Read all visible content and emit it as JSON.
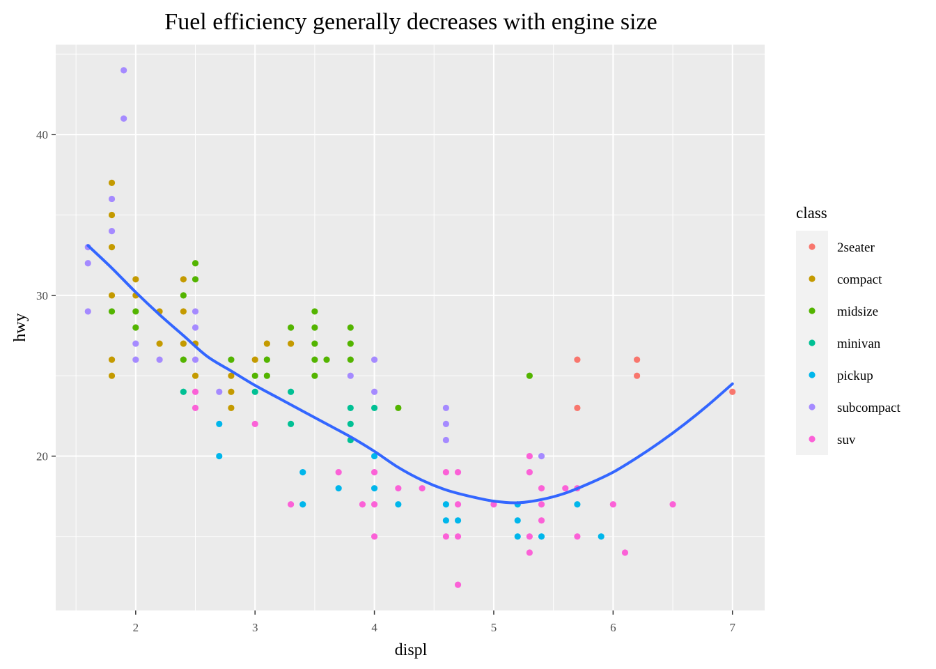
{
  "chart_data": {
    "type": "scatter",
    "title": "Fuel efficiency generally decreases with engine size",
    "xlabel": "displ",
    "ylabel": "hwy",
    "xlim": [
      1.33,
      7.27
    ],
    "ylim": [
      10.4,
      45.6
    ],
    "x_ticks": [
      2,
      3,
      4,
      5,
      6,
      7
    ],
    "y_ticks": [
      20,
      30,
      40
    ],
    "grid": true,
    "background": "#ebebeb",
    "legend": {
      "title": "class",
      "position": "right",
      "entries": [
        "2seater",
        "compact",
        "midsize",
        "minivan",
        "pickup",
        "subcompact",
        "suv"
      ]
    },
    "colors": {
      "2seater": "#f8766d",
      "compact": "#c49a00",
      "midsize": "#53b400",
      "minivan": "#00c094",
      "pickup": "#00b6eb",
      "subcompact": "#a58aff",
      "suv": "#fb61d7",
      "smooth": "#3366ff"
    },
    "series": [
      {
        "name": "2seater",
        "points": [
          [
            5.7,
            26
          ],
          [
            5.7,
            23
          ],
          [
            6.2,
            26
          ],
          [
            6.2,
            25
          ],
          [
            7.0,
            24
          ]
        ]
      },
      {
        "name": "compact",
        "points": [
          [
            1.8,
            37
          ],
          [
            1.8,
            35
          ],
          [
            1.8,
            33
          ],
          [
            1.8,
            30
          ],
          [
            1.8,
            26
          ],
          [
            1.8,
            25
          ],
          [
            2.0,
            31
          ],
          [
            2.0,
            30
          ],
          [
            2.2,
            29
          ],
          [
            2.2,
            27
          ],
          [
            2.4,
            31
          ],
          [
            2.4,
            29
          ],
          [
            2.4,
            27
          ],
          [
            2.5,
            27
          ],
          [
            2.5,
            25
          ],
          [
            2.8,
            25
          ],
          [
            2.8,
            24
          ],
          [
            2.8,
            23
          ],
          [
            3.0,
            26
          ],
          [
            3.1,
            27
          ],
          [
            3.3,
            27
          ]
        ]
      },
      {
        "name": "midsize",
        "points": [
          [
            1.8,
            29
          ],
          [
            2.0,
            29
          ],
          [
            2.0,
            28
          ],
          [
            2.4,
            30
          ],
          [
            2.4,
            26
          ],
          [
            2.5,
            32
          ],
          [
            2.5,
            31
          ],
          [
            2.8,
            26
          ],
          [
            3.0,
            25
          ],
          [
            3.1,
            26
          ],
          [
            3.1,
            25
          ],
          [
            3.3,
            28
          ],
          [
            3.5,
            29
          ],
          [
            3.5,
            28
          ],
          [
            3.5,
            27
          ],
          [
            3.5,
            26
          ],
          [
            3.5,
            25
          ],
          [
            3.6,
            26
          ],
          [
            3.8,
            28
          ],
          [
            3.8,
            27
          ],
          [
            3.8,
            26
          ],
          [
            4.2,
            23
          ],
          [
            5.3,
            25
          ]
        ]
      },
      {
        "name": "minivan",
        "points": [
          [
            2.4,
            24
          ],
          [
            3.0,
            24
          ],
          [
            3.3,
            24
          ],
          [
            3.3,
            22
          ],
          [
            3.8,
            23
          ],
          [
            3.8,
            22
          ],
          [
            3.8,
            21
          ],
          [
            4.0,
            23
          ]
        ]
      },
      {
        "name": "pickup",
        "points": [
          [
            2.7,
            22
          ],
          [
            2.7,
            20
          ],
          [
            3.4,
            19
          ],
          [
            3.4,
            17
          ],
          [
            3.7,
            18
          ],
          [
            4.0,
            20
          ],
          [
            4.0,
            18
          ],
          [
            4.2,
            17
          ],
          [
            4.6,
            17
          ],
          [
            4.6,
            16
          ],
          [
            4.7,
            16
          ],
          [
            5.2,
            17
          ],
          [
            5.2,
            16
          ],
          [
            5.2,
            15
          ],
          [
            5.4,
            15
          ],
          [
            5.7,
            17
          ],
          [
            5.9,
            15
          ]
        ]
      },
      {
        "name": "subcompact",
        "points": [
          [
            1.6,
            33
          ],
          [
            1.6,
            32
          ],
          [
            1.6,
            29
          ],
          [
            1.8,
            36
          ],
          [
            1.8,
            34
          ],
          [
            1.9,
            44
          ],
          [
            1.9,
            41
          ],
          [
            2.0,
            27
          ],
          [
            2.0,
            26
          ],
          [
            2.2,
            26
          ],
          [
            2.5,
            29
          ],
          [
            2.5,
            28
          ],
          [
            2.5,
            26
          ],
          [
            2.7,
            24
          ],
          [
            3.8,
            25
          ],
          [
            4.0,
            26
          ],
          [
            4.0,
            24
          ],
          [
            4.6,
            23
          ],
          [
            4.6,
            22
          ],
          [
            4.6,
            21
          ],
          [
            5.4,
            20
          ]
        ]
      },
      {
        "name": "suv",
        "points": [
          [
            2.5,
            24
          ],
          [
            2.5,
            23
          ],
          [
            3.0,
            22
          ],
          [
            3.3,
            17
          ],
          [
            3.7,
            19
          ],
          [
            3.9,
            17
          ],
          [
            4.0,
            19
          ],
          [
            4.0,
            17
          ],
          [
            4.0,
            15
          ],
          [
            4.2,
            18
          ],
          [
            4.4,
            18
          ],
          [
            4.6,
            19
          ],
          [
            4.6,
            15
          ],
          [
            4.7,
            19
          ],
          [
            4.7,
            17
          ],
          [
            4.7,
            15
          ],
          [
            4.7,
            12
          ],
          [
            5.0,
            17
          ],
          [
            5.3,
            20
          ],
          [
            5.3,
            19
          ],
          [
            5.3,
            15
          ],
          [
            5.3,
            14
          ],
          [
            5.4,
            18
          ],
          [
            5.4,
            17
          ],
          [
            5.4,
            16
          ],
          [
            5.6,
            18
          ],
          [
            5.7,
            18
          ],
          [
            5.7,
            15
          ],
          [
            6.0,
            17
          ],
          [
            6.1,
            14
          ],
          [
            6.5,
            17
          ]
        ]
      }
    ],
    "smooth": {
      "method": "loess",
      "points": [
        [
          1.6,
          33.1
        ],
        [
          1.8,
          31.7
        ],
        [
          2.0,
          30.2
        ],
        [
          2.2,
          28.8
        ],
        [
          2.4,
          27.5
        ],
        [
          2.6,
          26.2
        ],
        [
          2.8,
          25.3
        ],
        [
          3.0,
          24.4
        ],
        [
          3.2,
          23.6
        ],
        [
          3.4,
          22.8
        ],
        [
          3.6,
          22.0
        ],
        [
          3.8,
          21.2
        ],
        [
          4.0,
          20.3
        ],
        [
          4.2,
          19.3
        ],
        [
          4.4,
          18.5
        ],
        [
          4.6,
          17.9
        ],
        [
          4.8,
          17.5
        ],
        [
          5.0,
          17.2
        ],
        [
          5.2,
          17.1
        ],
        [
          5.4,
          17.3
        ],
        [
          5.6,
          17.7
        ],
        [
          5.8,
          18.3
        ],
        [
          6.0,
          19.0
        ],
        [
          6.2,
          19.9
        ],
        [
          6.4,
          20.9
        ],
        [
          6.6,
          22.0
        ],
        [
          6.8,
          23.2
        ],
        [
          7.0,
          24.5
        ]
      ]
    }
  }
}
